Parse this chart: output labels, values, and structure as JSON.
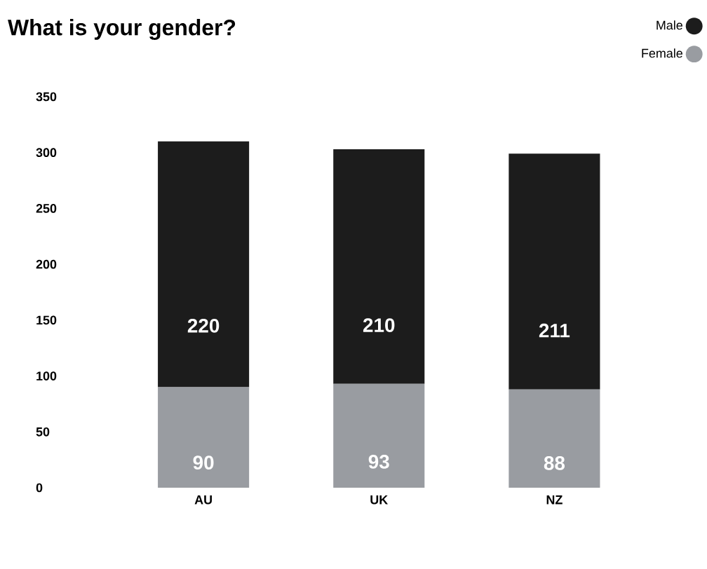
{
  "chart_data": {
    "type": "bar",
    "title": "What is your gender?",
    "categories": [
      "AU",
      "UK",
      "NZ"
    ],
    "stacked": true,
    "data_labels": true,
    "legend": "top right",
    "grid": false,
    "series": [
      {
        "name": "Female",
        "color": "#999ca1",
        "values": [
          90,
          93,
          88
        ]
      },
      {
        "name": "Male",
        "color": "#1c1c1c",
        "values": [
          220,
          210,
          211
        ]
      }
    ],
    "ylim": [
      0,
      350
    ],
    "yticks": [
      0,
      50,
      100,
      150,
      200,
      250,
      300,
      350
    ]
  }
}
